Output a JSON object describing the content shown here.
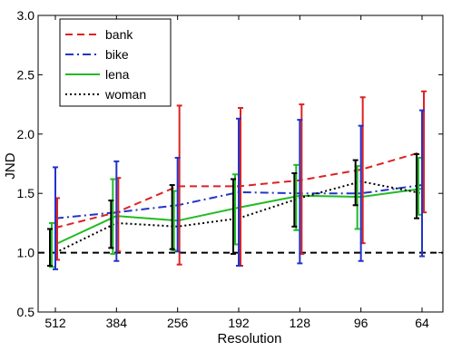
{
  "chart_data": {
    "type": "line",
    "title": "",
    "xlabel": "Resolution",
    "ylabel": "JND",
    "categories": [
      "512",
      "384",
      "256",
      "192",
      "128",
      "96",
      "64"
    ],
    "ylim": [
      0.5,
      3.0
    ],
    "yticks": [
      "0.5",
      "1.0",
      "1.5",
      "2.0",
      "2.5",
      "3.0"
    ],
    "grid": false,
    "legend_position": "top-left",
    "reference_line": {
      "value": 1.0,
      "style": "dashed",
      "color": "#000000"
    },
    "series": [
      {
        "name": "bank",
        "color": "#dd2222",
        "linestyle": "dashed",
        "values": [
          1.21,
          1.34,
          1.56,
          1.56,
          1.61,
          1.7,
          1.85
        ],
        "err_low": [
          0.94,
          1.01,
          0.9,
          0.89,
          0.99,
          1.08,
          1.34
        ],
        "err_high": [
          1.46,
          1.63,
          2.24,
          2.22,
          2.25,
          2.31,
          2.36
        ]
      },
      {
        "name": "bike",
        "color": "#2233cc",
        "linestyle": "dashdot",
        "values": [
          1.29,
          1.34,
          1.4,
          1.51,
          1.5,
          1.5,
          1.57
        ],
        "err_low": [
          0.86,
          0.93,
          1.01,
          0.89,
          0.91,
          0.93,
          0.97
        ],
        "err_high": [
          1.72,
          1.77,
          1.8,
          2.13,
          2.12,
          2.07,
          2.2
        ]
      },
      {
        "name": "lena",
        "color": "#22bb22",
        "linestyle": "solid",
        "values": [
          1.07,
          1.31,
          1.27,
          1.38,
          1.48,
          1.47,
          1.54
        ],
        "err_low": [
          0.88,
          0.99,
          1.02,
          1.07,
          1.19,
          1.2,
          1.32
        ],
        "err_high": [
          1.25,
          1.62,
          1.52,
          1.66,
          1.74,
          1.73,
          1.8
        ]
      },
      {
        "name": "woman",
        "color": "#000000",
        "linestyle": "dotted",
        "values": [
          1.0,
          1.25,
          1.22,
          1.29,
          1.46,
          1.6,
          1.5
        ],
        "err_low": [
          0.89,
          1.04,
          1.03,
          0.99,
          1.22,
          1.4,
          1.29
        ],
        "err_high": [
          1.2,
          1.44,
          1.57,
          1.62,
          1.67,
          1.78,
          1.83
        ]
      }
    ]
  }
}
